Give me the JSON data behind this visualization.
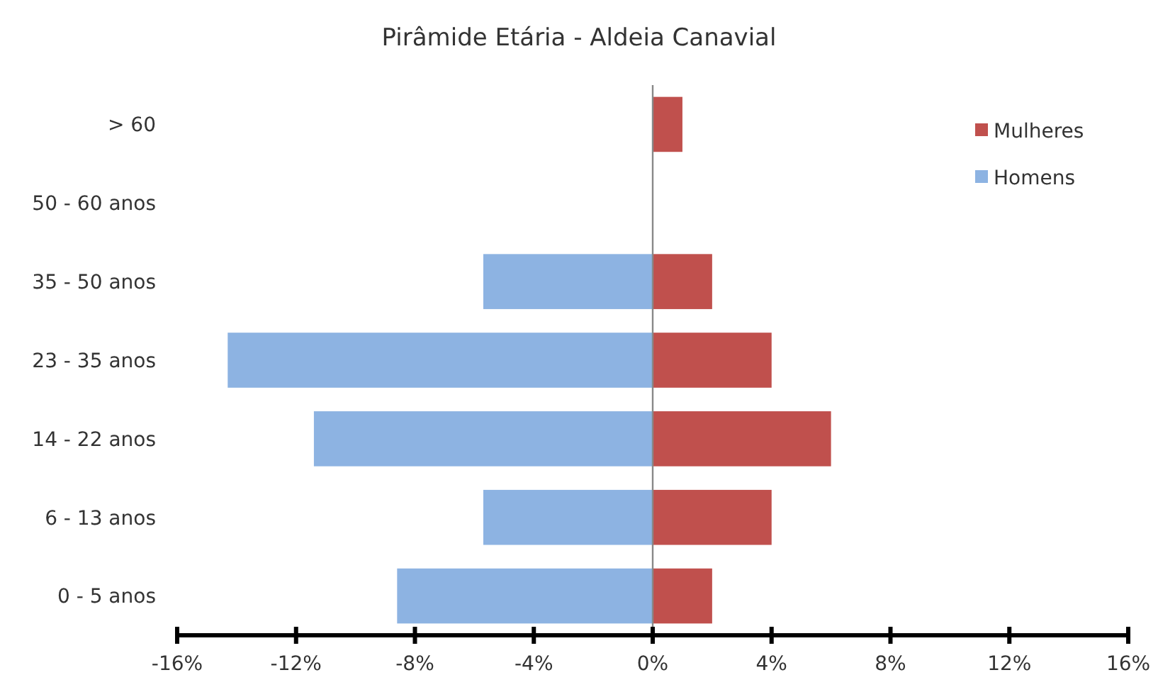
{
  "chart_data": {
    "type": "bar",
    "orientation": "horizontal",
    "stacked": true,
    "title": "Pirâmide Etária - Aldeia Canavial",
    "categories": [
      "> 60",
      "50 - 60 anos",
      "35 - 50 anos",
      "23 - 35 anos",
      "14 - 22 anos",
      "6 - 13 anos",
      "0 - 5 anos"
    ],
    "series": [
      {
        "name": "Mulheres",
        "color": "#c0504d",
        "values": [
          1.0,
          0,
          2.0,
          4.0,
          6.0,
          4.0,
          2.0
        ]
      },
      {
        "name": "Homens",
        "color": "#8db3e2",
        "values": [
          0,
          0,
          -5.7,
          -14.3,
          -11.4,
          -5.7,
          -8.6
        ]
      }
    ],
    "xlim": [
      -16,
      16
    ],
    "xticks": [
      {
        "value": -16,
        "label": "-16%"
      },
      {
        "value": -12,
        "label": "-12%"
      },
      {
        "value": -8,
        "label": "-8%"
      },
      {
        "value": -4,
        "label": "-4%"
      },
      {
        "value": 0,
        "label": "0%"
      },
      {
        "value": 4,
        "label": "4%"
      },
      {
        "value": 8,
        "label": "8%"
      },
      {
        "value": 12,
        "label": "12%"
      },
      {
        "value": 16,
        "label": "16%"
      }
    ],
    "legend": "top right"
  }
}
